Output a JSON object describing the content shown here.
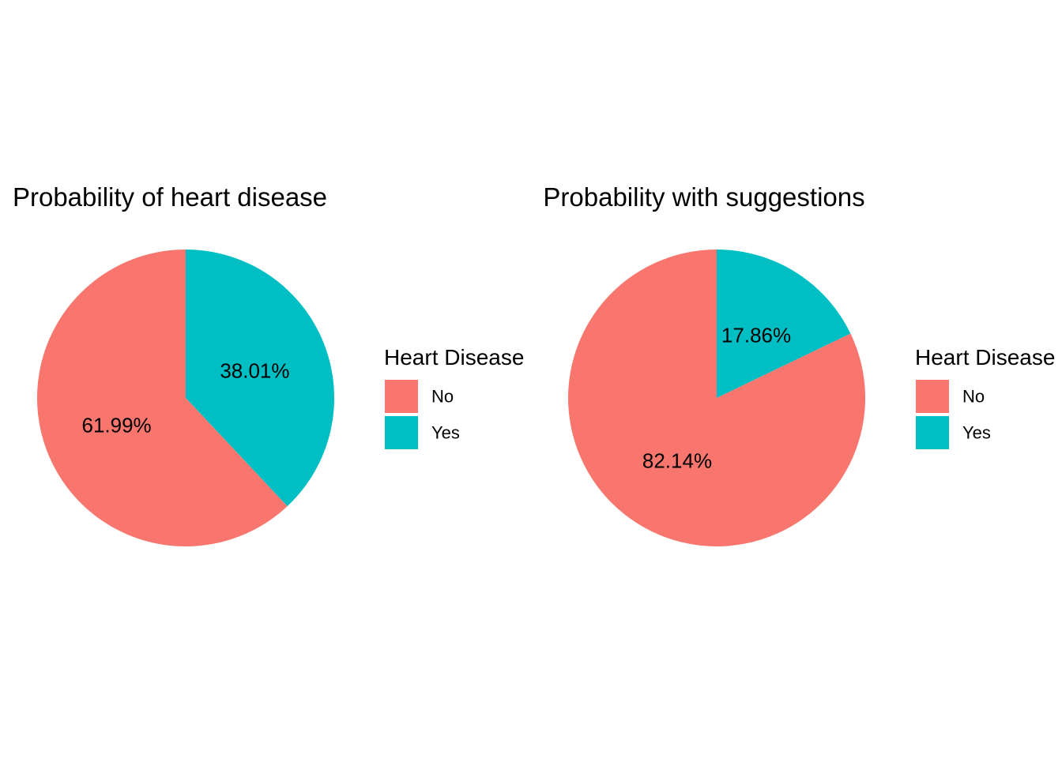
{
  "chart_data": [
    {
      "type": "pie",
      "title": "Probability of heart disease",
      "legend_title": "Heart Disease",
      "legend_placement": "right",
      "categories": [
        "No",
        "Yes"
      ],
      "values": [
        61.99,
        38.01
      ],
      "labels": [
        "61.99%",
        "38.01%"
      ],
      "colors": [
        "#F8766D",
        "#00BFC4"
      ]
    },
    {
      "type": "pie",
      "title": "Probability with suggestions",
      "legend_title": "Heart Disease",
      "legend_placement": "right",
      "categories": [
        "No",
        "Yes"
      ],
      "values": [
        82.14,
        17.86
      ],
      "labels": [
        "82.14%",
        "17.86%"
      ],
      "colors": [
        "#F8766D",
        "#00BFC4"
      ]
    }
  ]
}
